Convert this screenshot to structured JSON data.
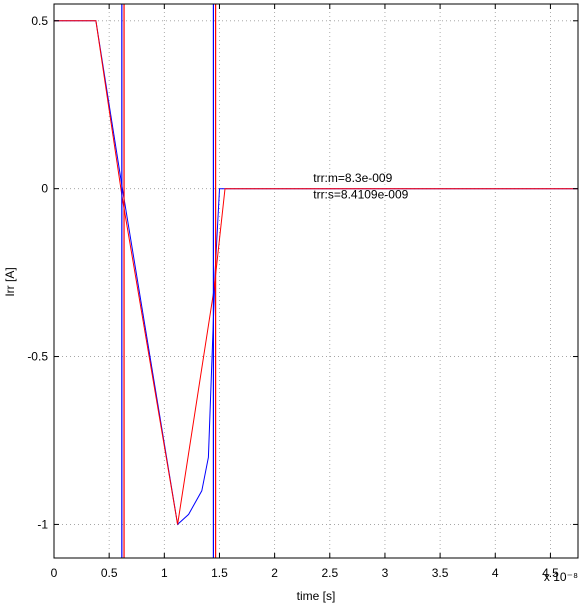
{
  "chart_data": {
    "type": "line",
    "xlabel": "time [s]",
    "ylabel": "Irr [A]",
    "x_multiplier": "x 10⁻⁸",
    "xlim": [
      0,
      4.75
    ],
    "ylim": [
      -1.1,
      0.55
    ],
    "xticks": [
      0,
      0.5,
      1,
      1.5,
      2,
      2.5,
      3,
      3.5,
      4,
      4.5
    ],
    "xtick_labels": [
      "0",
      "0.5",
      "1",
      "1.5",
      "2",
      "2.5",
      "3",
      "3.5",
      "4",
      "4.5"
    ],
    "yticks": [
      0.5,
      0,
      -0.5,
      -1
    ],
    "ytick_labels": [
      "0.5",
      "0",
      "-0.5",
      "-1"
    ],
    "grid": true,
    "series": [
      {
        "color": "#0000ff",
        "x": [
          0,
          0.38,
          0.62,
          1.12,
          1.22,
          1.34,
          1.4,
          1.46,
          1.5,
          4.75
        ],
        "y": [
          0.5,
          0.5,
          0.0,
          -1.0,
          -0.97,
          -0.9,
          -0.8,
          -0.25,
          0.0,
          0.0
        ]
      },
      {
        "color": "#ff0000",
        "x": [
          0,
          0.38,
          0.62,
          1.12,
          1.45,
          1.55,
          4.75
        ],
        "y": [
          0.5,
          0.5,
          -0.03,
          -1.0,
          -0.3,
          0.0,
          0.0
        ]
      }
    ],
    "vertical_lines": [
      {
        "x": 0.615,
        "color": "#0000ff"
      },
      {
        "x": 0.635,
        "color": "#ff0000"
      },
      {
        "x": 1.445,
        "color": "#0000ff"
      },
      {
        "x": 1.465,
        "color": "#ff0000"
      }
    ],
    "annotations": [
      {
        "text": "trr:m=8.3e-009",
        "x": 2.35,
        "y": 0.02
      },
      {
        "text": "trr:s=8.4109e-009",
        "x": 2.35,
        "y": -0.03
      }
    ]
  }
}
